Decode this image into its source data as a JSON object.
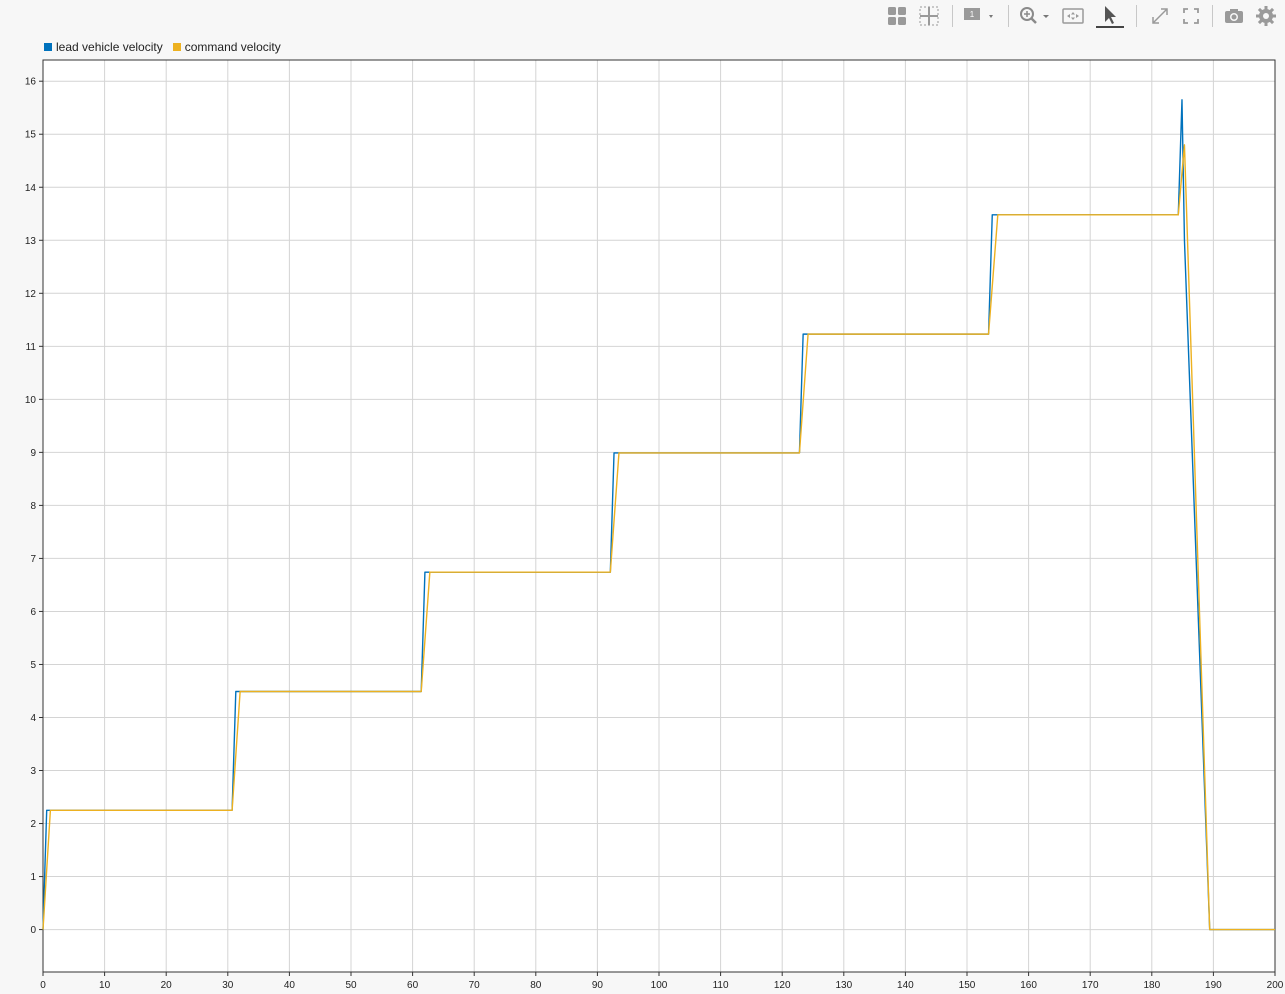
{
  "toolbar": {
    "icons": [
      {
        "name": "layout-grid-icon"
      },
      {
        "name": "crosshair-grid-icon"
      },
      {
        "name": "single-view-dropdown-icon",
        "label": "1"
      },
      {
        "name": "zoom-dropdown-icon"
      },
      {
        "name": "fit-to-view-icon"
      },
      {
        "name": "pointer-select-icon"
      },
      {
        "name": "expand-arrows-icon"
      },
      {
        "name": "fullscreen-icon"
      },
      {
        "name": "camera-icon"
      },
      {
        "name": "gear-icon"
      }
    ]
  },
  "colors": {
    "series1": "#0072bd",
    "series2": "#edb120",
    "grid": "#d4d4d4",
    "plot_bg": "#ffffff"
  },
  "chart_data": {
    "type": "line",
    "title": "",
    "xlabel": "",
    "ylabel": "",
    "xlim": [
      0,
      200
    ],
    "ylim": [
      -0.8,
      16.4
    ],
    "xticks": [
      0,
      10,
      20,
      30,
      40,
      50,
      60,
      70,
      80,
      90,
      100,
      110,
      120,
      130,
      140,
      150,
      160,
      170,
      180,
      190,
      200
    ],
    "yticks": [
      0,
      1,
      2,
      3,
      4,
      5,
      6,
      7,
      8,
      9,
      10,
      11,
      12,
      13,
      14,
      15,
      16
    ],
    "grid": true,
    "legend_position": "top-left",
    "series": [
      {
        "name": "lead vehicle velocity",
        "x": [
          0,
          0.6,
          30.7,
          31.3,
          61.4,
          62.0,
          92.1,
          92.7,
          122.8,
          123.4,
          153.5,
          154.1,
          184.3,
          184.9,
          185.3,
          189.4,
          200
        ],
        "y": [
          0,
          2.25,
          2.25,
          4.49,
          4.49,
          6.74,
          6.74,
          8.99,
          8.99,
          11.23,
          11.23,
          13.48,
          13.48,
          15.65,
          13.0,
          0,
          0
        ]
      },
      {
        "name": "command velocity",
        "x": [
          0,
          1.2,
          30.7,
          32.0,
          61.4,
          62.8,
          92.1,
          93.5,
          122.8,
          124.2,
          153.5,
          155.0,
          184.3,
          185.3,
          189.4,
          200
        ],
        "y": [
          0,
          2.25,
          2.25,
          4.49,
          4.49,
          6.74,
          6.74,
          8.99,
          8.99,
          11.23,
          11.23,
          13.48,
          13.48,
          14.8,
          0,
          0
        ]
      }
    ]
  }
}
